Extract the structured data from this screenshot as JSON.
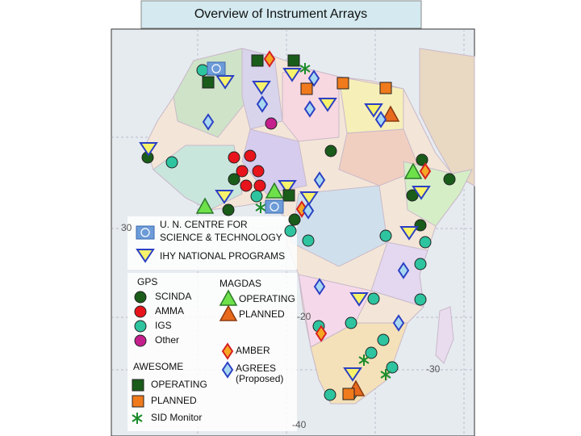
{
  "header": {
    "title": "Overview of Instrument Arrays"
  },
  "map_labels": [
    "30",
    "-20",
    "-30",
    "-40"
  ],
  "legend": {
    "un_centre": [
      "U. N. CENTRE FOR",
      "SCIENCE & TECHNOLOGY"
    ],
    "ihy": "IHY NATIONAL PROGRAMS",
    "gps": {
      "title": "GPS",
      "items": [
        "SCINDA",
        "AMMA",
        "IGS",
        "Other"
      ]
    },
    "magdas": {
      "title": "MAGDAS",
      "items": [
        "OPERATING",
        "PLANNED"
      ]
    },
    "amber": "AMBER",
    "agrees": {
      "label": "AGREES",
      "note": "(Proposed)"
    },
    "awesome": {
      "title": "AWESOME",
      "items": [
        "OPERATING",
        "PLANNED",
        "SID Monitor"
      ]
    }
  }
}
